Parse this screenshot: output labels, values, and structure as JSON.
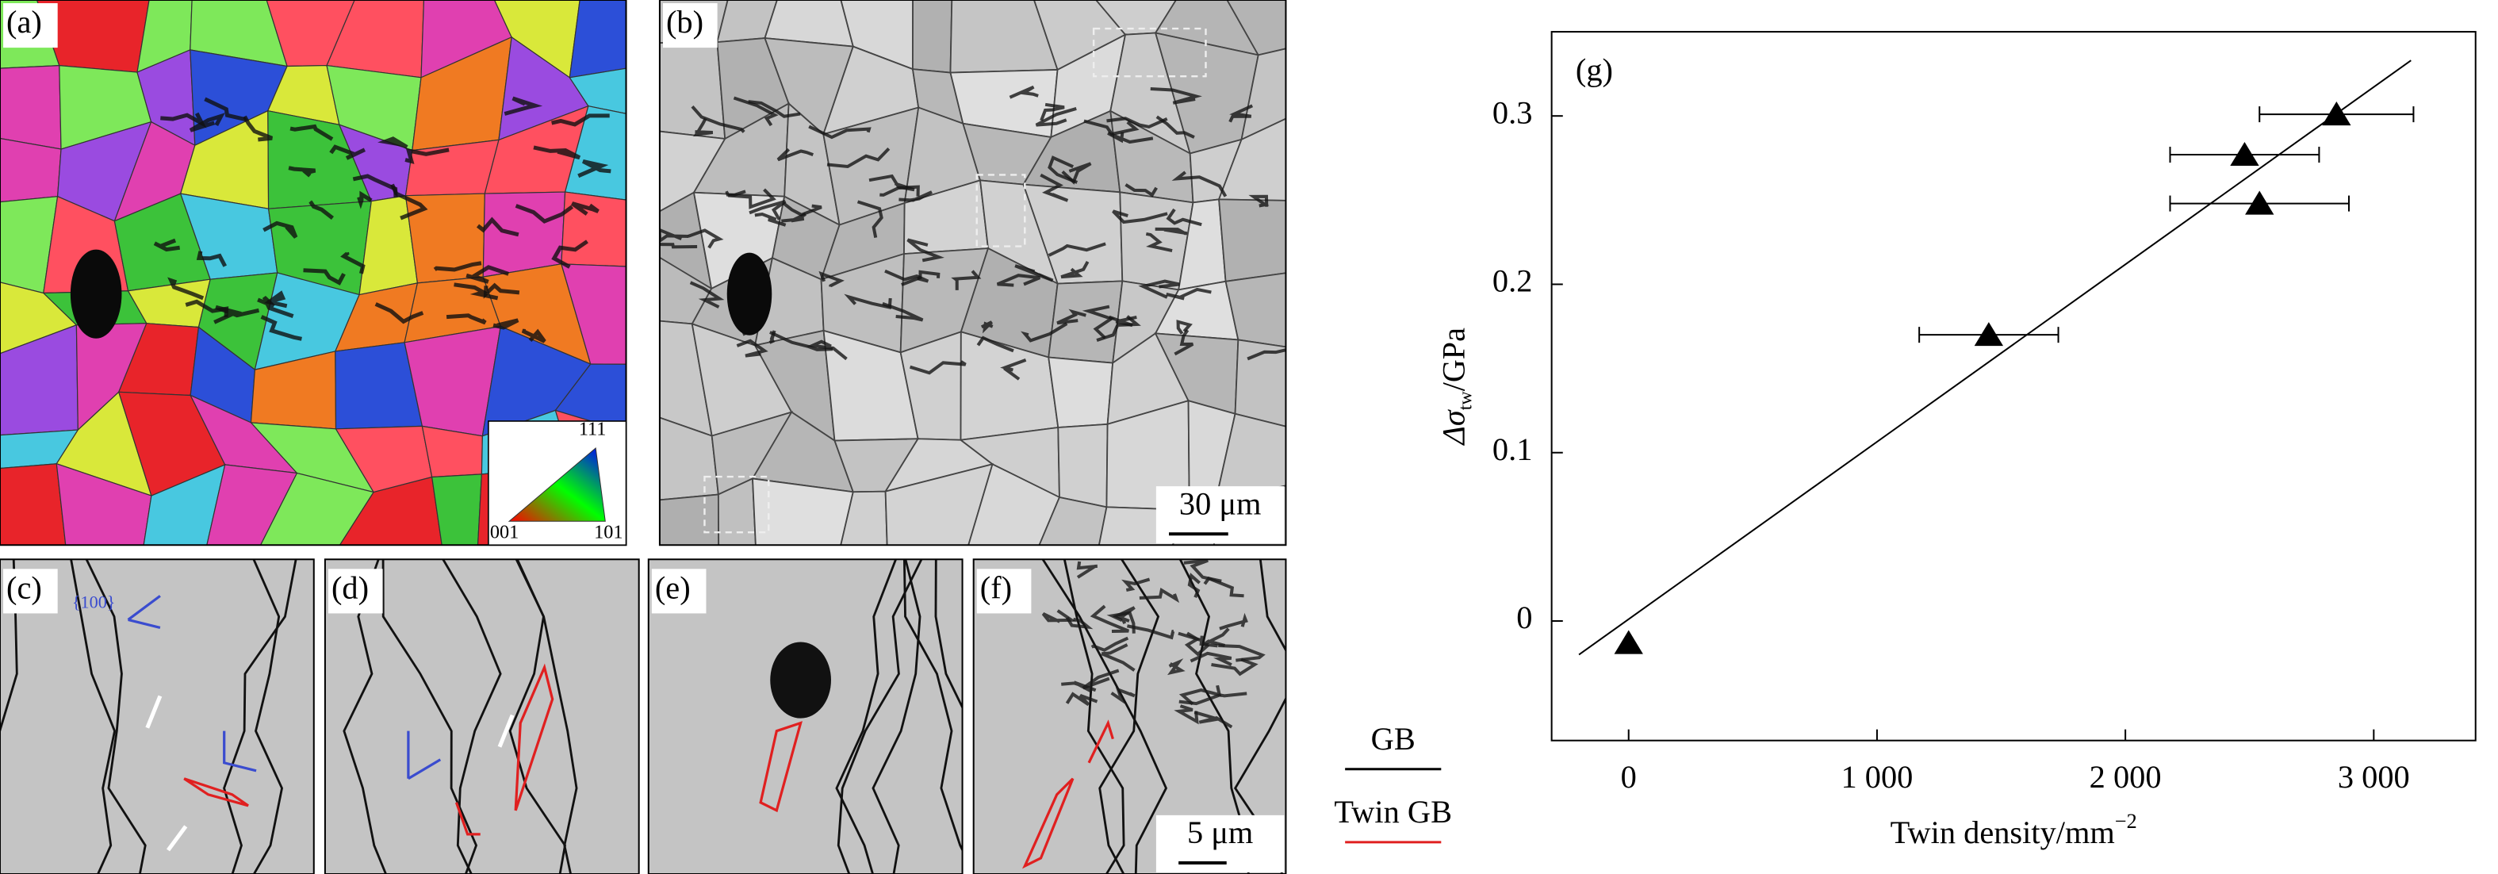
{
  "panels": [
    {
      "label": "(a)"
    },
    {
      "label": "(b)"
    },
    {
      "label": "(c)"
    },
    {
      "label": "(d)"
    },
    {
      "label": "(e)"
    },
    {
      "label": "(f)"
    }
  ],
  "ipf_key": [
    "111",
    "001",
    "101"
  ],
  "scale_bars": [
    "30 μm",
    "5 μm"
  ],
  "plane_annotation": "{100}",
  "boundary_legend": [
    {
      "label": "GB",
      "color": "#000000"
    },
    {
      "label": "Twin GB",
      "color": "#e02020"
    }
  ],
  "chart_data": {
    "type": "scatter",
    "panel_label": "(g)",
    "xlabel": {
      "text": "Twin density/mm",
      "sup": "−2"
    },
    "ylabel": {
      "text": "Δσ",
      "sub": "tw",
      "unit": "/GPa"
    },
    "xlim": [
      -310,
      3410
    ],
    "ylim": [
      -0.071,
      0.35
    ],
    "xticks": [
      0,
      {
        "value": 1000,
        "label": "1 000"
      },
      {
        "value": 2000,
        "label": "2 000"
      },
      {
        "value": 3000,
        "label": "3 000"
      }
    ],
    "yticks": [
      0,
      0.1,
      0.2,
      0.3
    ],
    "series": [
      {
        "color": "#000000",
        "x": [
          0,
          1450,
          2480,
          2540,
          2850
        ],
        "xerr": [
          null,
          280,
          300,
          360,
          310
        ],
        "values": [
          -0.013,
          0.17,
          0.277,
          0.248,
          0.301
        ]
      }
    ],
    "fit_line": {
      "x": [
        -200,
        3150
      ],
      "y": [
        -0.02,
        0.333
      ]
    }
  }
}
